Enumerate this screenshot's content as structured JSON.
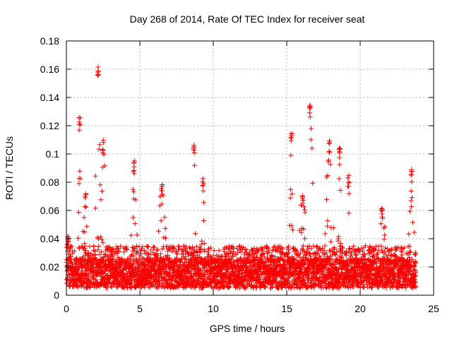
{
  "chart_data": {
    "type": "scatter",
    "title": "Day 268 of 2014, Rate Of TEC Index for receiver seat",
    "xlabel": "GPS time / hours",
    "ylabel": "ROTI / TECUs",
    "xlim": [
      0,
      25
    ],
    "ylim": [
      0,
      0.18
    ],
    "xticks": [
      0,
      5,
      10,
      15,
      20,
      25
    ],
    "xtick_labels": [
      "0",
      "5",
      "10",
      "15",
      "20",
      "25"
    ],
    "yticks": [
      0,
      0.02,
      0.04,
      0.06,
      0.08,
      0.1,
      0.12,
      0.14,
      0.16,
      0.18
    ],
    "ytick_labels": [
      "0",
      "0.02",
      "0.04",
      "0.06",
      "0.08",
      "0.1",
      "0.12",
      "0.14",
      "0.16",
      "0.18"
    ],
    "grid": true,
    "marker": "+",
    "series": [
      {
        "name": "ROTI",
        "color": "#ff0000",
        "x_range": [
          0,
          23.8
        ],
        "baseline_range": [
          0.005,
          0.035
        ],
        "peaks": [
          {
            "x": 0.1,
            "y": 0.045
          },
          {
            "x": 0.9,
            "y": 0.127
          },
          {
            "x": 1.3,
            "y": 0.072
          },
          {
            "x": 2.15,
            "y": 0.165
          },
          {
            "x": 2.5,
            "y": 0.11
          },
          {
            "x": 4.6,
            "y": 0.096
          },
          {
            "x": 6.5,
            "y": 0.079
          },
          {
            "x": 8.7,
            "y": 0.108
          },
          {
            "x": 9.3,
            "y": 0.083
          },
          {
            "x": 15.3,
            "y": 0.115
          },
          {
            "x": 16.1,
            "y": 0.072
          },
          {
            "x": 16.6,
            "y": 0.136
          },
          {
            "x": 17.9,
            "y": 0.11
          },
          {
            "x": 18.6,
            "y": 0.105
          },
          {
            "x": 19.2,
            "y": 0.085
          },
          {
            "x": 21.5,
            "y": 0.064
          },
          {
            "x": 23.5,
            "y": 0.089
          }
        ]
      }
    ]
  }
}
